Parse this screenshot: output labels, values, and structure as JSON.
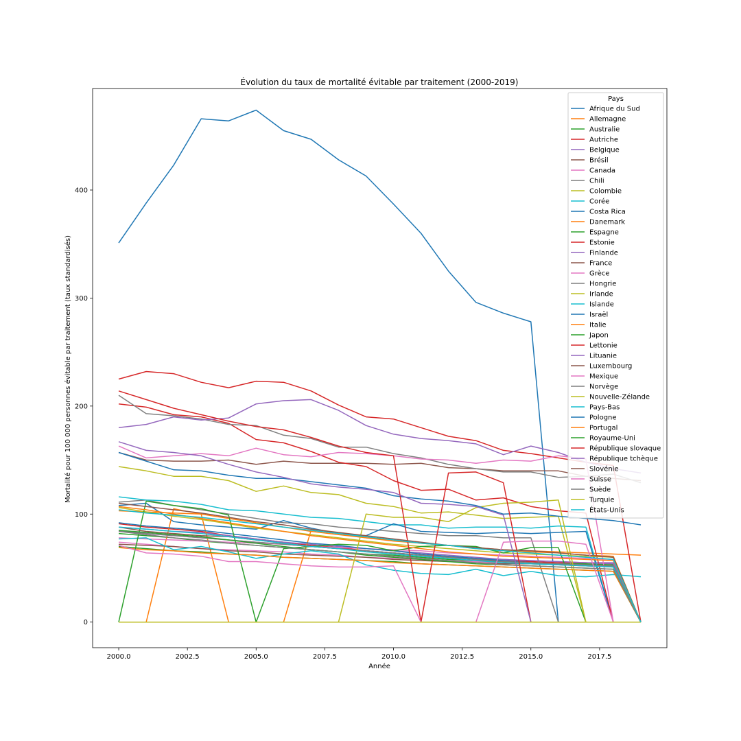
{
  "chart_data": {
    "type": "line",
    "title": "Évolution du taux de mortalité évitable par traitement (2000-2019)",
    "xlabel": "Année",
    "ylabel": "Mortalité pour 100 000 personnes évitable par traitement (taux standardisés)",
    "xlim": [
      1999.05,
      2019.95
    ],
    "ylim": [
      -23.7,
      494
    ],
    "xticks": [
      2000,
      2002.5,
      2005,
      2007.5,
      2010,
      2012.5,
      2015,
      2017.5
    ],
    "xtick_labels": [
      "2000.0",
      "2002.5",
      "2005.0",
      "2007.5",
      "2010.0",
      "2012.5",
      "2015.0",
      "2017.5"
    ],
    "yticks": [
      0,
      100,
      200,
      300,
      400
    ],
    "yticklabels": [
      "0",
      "100",
      "200",
      "300",
      "400"
    ],
    "grid": false,
    "legend_title": "Pays",
    "legend_position": "top-right",
    "x": [
      2000,
      2001,
      2002,
      2003,
      2004,
      2005,
      2006,
      2007,
      2008,
      2009,
      2010,
      2011,
      2012,
      2013,
      2014,
      2015,
      2016,
      2017,
      2018,
      2019
    ],
    "series": [
      {
        "name": "Afrique du Sud",
        "color": "#1f77b4",
        "values": [
          351,
          388,
          423,
          466,
          464,
          474,
          455,
          447,
          428,
          413,
          387,
          360,
          325,
          296,
          286,
          278,
          0,
          0,
          0,
          0
        ]
      },
      {
        "name": "Allemagne",
        "color": "#ff7f0e",
        "values": [
          103,
          102,
          101,
          100,
          96,
          92,
          88,
          84,
          81,
          78,
          75,
          73,
          71,
          69,
          67,
          66,
          65,
          64,
          63,
          62
        ]
      },
      {
        "name": "Australie",
        "color": "#2ca02c",
        "values": [
          82,
          80,
          78,
          75,
          73,
          71,
          69,
          67,
          65,
          63,
          62,
          60,
          58,
          57,
          56,
          55,
          54,
          54,
          53,
          0
        ]
      },
      {
        "name": "Autriche",
        "color": "#d62728",
        "values": [
          91,
          88,
          86,
          84,
          80,
          77,
          74,
          71,
          69,
          66,
          64,
          62,
          60,
          58,
          57,
          56,
          55,
          55,
          54,
          0
        ]
      },
      {
        "name": "Belgique",
        "color": "#9467bd",
        "values": [
          88,
          86,
          84,
          83,
          80,
          77,
          74,
          72,
          70,
          68,
          66,
          64,
          62,
          60,
          58,
          57,
          56,
          55,
          55,
          0
        ]
      },
      {
        "name": "Brésil",
        "color": "#8c564b",
        "values": [
          157,
          150,
          149,
          149,
          150,
          146,
          149,
          147,
          147,
          147,
          146,
          147,
          143,
          142,
          140,
          140,
          140,
          135,
          133,
          131
        ]
      },
      {
        "name": "Canada",
        "color": "#e377c2",
        "values": [
          74,
          72,
          70,
          68,
          67,
          66,
          65,
          63,
          62,
          60,
          59,
          58,
          57,
          56,
          55,
          54,
          53,
          52,
          51,
          0
        ]
      },
      {
        "name": "Chili",
        "color": "#7f7f7f",
        "values": [
          111,
          113,
          108,
          104,
          100,
          96,
          92,
          91,
          88,
          86,
          84,
          82,
          80,
          80,
          78,
          78,
          0,
          0,
          0,
          0
        ]
      },
      {
        "name": "Colombie",
        "color": "#bcbd22",
        "values": [
          144,
          140,
          135,
          135,
          131,
          121,
          126,
          120,
          118,
          110,
          107,
          101,
          102,
          99,
          96,
          97,
          98,
          0,
          0,
          0
        ]
      },
      {
        "name": "Corée",
        "color": "#17becf",
        "values": [
          116,
          113,
          112,
          109,
          104,
          103,
          100,
          97,
          96,
          93,
          90,
          90,
          87,
          88,
          88,
          87,
          89,
          88,
          0,
          0
        ]
      },
      {
        "name": "Costa Rica",
        "color": "#1f77b4",
        "values": [
          108,
          110,
          93,
          90,
          88,
          86,
          94,
          87,
          82,
          80,
          91,
          84,
          83,
          82,
          83,
          82,
          83,
          84,
          0,
          0
        ]
      },
      {
        "name": "Danemark",
        "color": "#ff7f0e",
        "values": [
          0,
          0,
          105,
          100,
          0,
          0,
          0,
          85,
          82,
          78,
          76,
          73,
          71,
          68,
          66,
          65,
          64,
          62,
          61,
          0
        ]
      },
      {
        "name": "Espagne",
        "color": "#2ca02c",
        "values": [
          70,
          68,
          66,
          65,
          63,
          62,
          60,
          59,
          58,
          57,
          56,
          54,
          53,
          52,
          51,
          50,
          49,
          48,
          47,
          0
        ]
      },
      {
        "name": "Estonie",
        "color": "#d62728",
        "values": [
          202,
          199,
          192,
          190,
          184,
          169,
          166,
          158,
          148,
          144,
          131,
          122,
          123,
          113,
          115,
          107,
          103,
          101,
          0,
          0
        ]
      },
      {
        "name": "Finlande",
        "color": "#9467bd",
        "values": [
          85,
          82,
          80,
          78,
          76,
          74,
          72,
          70,
          68,
          66,
          64,
          62,
          60,
          59,
          58,
          57,
          56,
          55,
          54,
          0
        ]
      },
      {
        "name": "France",
        "color": "#8c564b",
        "values": [
          72,
          71,
          70,
          68,
          66,
          65,
          63,
          62,
          61,
          60,
          58,
          57,
          56,
          55,
          54,
          54,
          53,
          52,
          51,
          0
        ]
      },
      {
        "name": "Grèce",
        "color": "#e377c2",
        "values": [
          78,
          77,
          76,
          75,
          74,
          73,
          72,
          70,
          69,
          68,
          67,
          66,
          64,
          63,
          62,
          61,
          60,
          59,
          58,
          0
        ]
      },
      {
        "name": "Hongrie",
        "color": "#7f7f7f",
        "values": [
          210,
          193,
          191,
          188,
          183,
          182,
          173,
          170,
          162,
          162,
          156,
          152,
          146,
          142,
          139,
          139,
          134,
          135,
          137,
          129
        ]
      },
      {
        "name": "Irlande",
        "color": "#bcbd22",
        "values": [
          106,
          102,
          98,
          95,
          91,
          87,
          84,
          81,
          78,
          75,
          72,
          70,
          68,
          66,
          64,
          63,
          62,
          61,
          60,
          0
        ]
      },
      {
        "name": "Islande",
        "color": "#17becf",
        "values": [
          77,
          78,
          67,
          70,
          65,
          59,
          63,
          66,
          63,
          53,
          48,
          45,
          44,
          49,
          43,
          47,
          43,
          42,
          44,
          42
        ]
      },
      {
        "name": "Israël",
        "color": "#1f77b4",
        "values": [
          92,
          89,
          87,
          85,
          82,
          79,
          76,
          73,
          71,
          68,
          66,
          63,
          61,
          59,
          57,
          55,
          54,
          53,
          52,
          0
        ]
      },
      {
        "name": "Italie",
        "color": "#ff7f0e",
        "values": [
          69,
          67,
          66,
          64,
          63,
          62,
          60,
          59,
          58,
          57,
          55,
          54,
          53,
          52,
          51,
          50,
          49,
          48,
          47,
          0
        ]
      },
      {
        "name": "Japon",
        "color": "#2ca02c",
        "values": [
          0,
          112,
          108,
          105,
          99,
          0,
          68,
          70,
          72,
          71,
          66,
          70,
          71,
          70,
          64,
          69,
          69,
          0,
          0,
          0
        ]
      },
      {
        "name": "Lettonie",
        "color": "#d62728",
        "values": [
          225,
          232,
          230,
          222,
          217,
          223,
          222,
          214,
          201,
          190,
          188,
          180,
          172,
          168,
          159,
          156,
          152,
          148,
          145,
          0
        ]
      },
      {
        "name": "Lituanie",
        "color": "#9467bd",
        "values": [
          180,
          183,
          190,
          187,
          189,
          202,
          205,
          206,
          196,
          182,
          174,
          170,
          168,
          165,
          155,
          163,
          157,
          148,
          142,
          138
        ]
      },
      {
        "name": "Luxembourg",
        "color": "#8c564b",
        "values": [
          88,
          84,
          82,
          80,
          79,
          76,
          73,
          70,
          68,
          66,
          64,
          62,
          60,
          58,
          56,
          55,
          54,
          53,
          52,
          0
        ]
      },
      {
        "name": "Mexique",
        "color": "#e377c2",
        "values": [
          163,
          152,
          154,
          156,
          154,
          161,
          155,
          153,
          157,
          156,
          154,
          151,
          150,
          147,
          150,
          149,
          154,
          151,
          0,
          0
        ]
      },
      {
        "name": "Norvège",
        "color": "#7f7f7f",
        "values": [
          84,
          82,
          80,
          78,
          76,
          74,
          72,
          70,
          68,
          66,
          64,
          62,
          60,
          58,
          56,
          55,
          54,
          53,
          52,
          0
        ]
      },
      {
        "name": "Nouvelle-Zélande",
        "color": "#bcbd22",
        "values": [
          0,
          0,
          0,
          0,
          0,
          0,
          0,
          0,
          0,
          100,
          97,
          97,
          93,
          106,
          110,
          111,
          113,
          0,
          0,
          0
        ]
      },
      {
        "name": "Pays-Bas",
        "color": "#17becf",
        "values": [
          88,
          86,
          84,
          82,
          79,
          76,
          73,
          70,
          68,
          65,
          63,
          61,
          59,
          57,
          55,
          54,
          53,
          52,
          51,
          0
        ]
      },
      {
        "name": "Pologne",
        "color": "#1f77b4",
        "values": [
          157,
          149,
          141,
          140,
          136,
          133,
          133,
          130,
          127,
          124,
          117,
          114,
          112,
          108,
          100,
          101,
          98,
          96,
          94,
          90
        ]
      },
      {
        "name": "Portugal",
        "color": "#ff7f0e",
        "values": [
          107,
          104,
          100,
          96,
          92,
          88,
          84,
          80,
          77,
          74,
          71,
          68,
          65,
          63,
          61,
          60,
          59,
          58,
          57,
          0
        ]
      },
      {
        "name": "Royaume-Uni",
        "color": "#2ca02c",
        "values": [
          85,
          83,
          81,
          79,
          76,
          73,
          70,
          67,
          65,
          62,
          60,
          58,
          56,
          54,
          53,
          52,
          51,
          50,
          49,
          0
        ]
      },
      {
        "name": "République slovaque",
        "color": "#d62728",
        "values": [
          214,
          206,
          198,
          192,
          186,
          181,
          178,
          171,
          163,
          157,
          154,
          0,
          138,
          139,
          129,
          0,
          0,
          0,
          0,
          0
        ]
      },
      {
        "name": "République tchèque",
        "color": "#9467bd",
        "values": [
          167,
          159,
          157,
          154,
          146,
          139,
          134,
          128,
          125,
          123,
          120,
          110,
          109,
          107,
          99,
          0,
          0,
          0,
          0,
          0
        ]
      },
      {
        "name": "Slovénie",
        "color": "#8c564b",
        "values": [
          110,
          107,
          104,
          101,
          97,
          93,
          90,
          86,
          83,
          80,
          77,
          74,
          71,
          69,
          67,
          66,
          64,
          62,
          60,
          0
        ]
      },
      {
        "name": "Suisse",
        "color": "#e377c2",
        "values": [
          71,
          64,
          63,
          61,
          56,
          56,
          54,
          52,
          51,
          51,
          52,
          0,
          0,
          0,
          74,
          75,
          75,
          72,
          0,
          0
        ]
      },
      {
        "name": "Suède",
        "color": "#7f7f7f",
        "values": [
          84,
          81,
          78,
          76,
          73,
          71,
          69,
          67,
          65,
          63,
          61,
          59,
          57,
          55,
          53,
          52,
          51,
          50,
          49,
          0
        ]
      },
      {
        "name": "Turquie",
        "color": "#bcbd22",
        "values": [
          0,
          0,
          0,
          0,
          0,
          0,
          0,
          0,
          0,
          0,
          0,
          0,
          0,
          0,
          0,
          0,
          0,
          0,
          0,
          0
        ]
      },
      {
        "name": "États-Unis",
        "color": "#17becf",
        "values": [
          104,
          101,
          99,
          97,
          94,
          91,
          88,
          85,
          82,
          79,
          76,
          73,
          71,
          68,
          66,
          64,
          62,
          60,
          58,
          0
        ]
      }
    ]
  }
}
